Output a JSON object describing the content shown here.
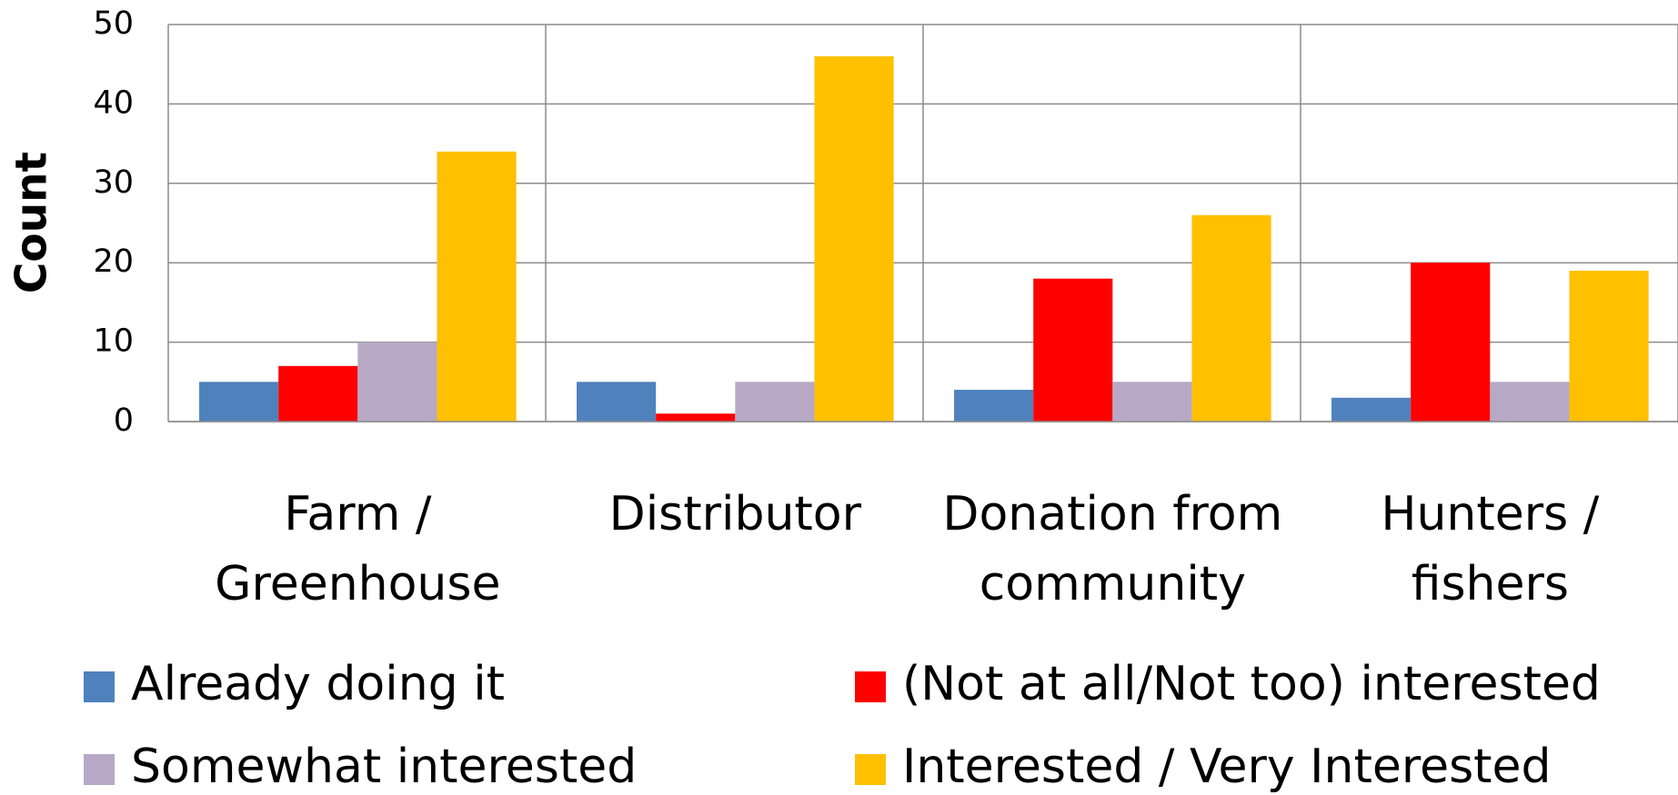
{
  "chart_data": {
    "type": "bar",
    "categories": [
      "Farm / Greenhouse",
      "Distributor",
      "Donation from community",
      "Hunters / fishers"
    ],
    "y_label": "Count",
    "series": [
      {
        "name": "Already doing it",
        "color": "#4f81bd",
        "values": [
          5,
          5,
          4,
          3
        ]
      },
      {
        "name": "(Not at all/Not too) interested",
        "color": "#ff0000",
        "values": [
          7,
          1,
          18,
          20
        ]
      },
      {
        "name": "Somewhat interested",
        "color": "#b7a9c5",
        "values": [
          10,
          5,
          5,
          5
        ]
      },
      {
        "name": "Interested / Very Interested",
        "color": "#ffc000",
        "values": [
          34,
          46,
          26,
          19
        ]
      }
    ],
    "ylim": [
      0,
      50
    ],
    "yticks": [
      0,
      10,
      20,
      30,
      40,
      50
    ],
    "grid": true
  }
}
